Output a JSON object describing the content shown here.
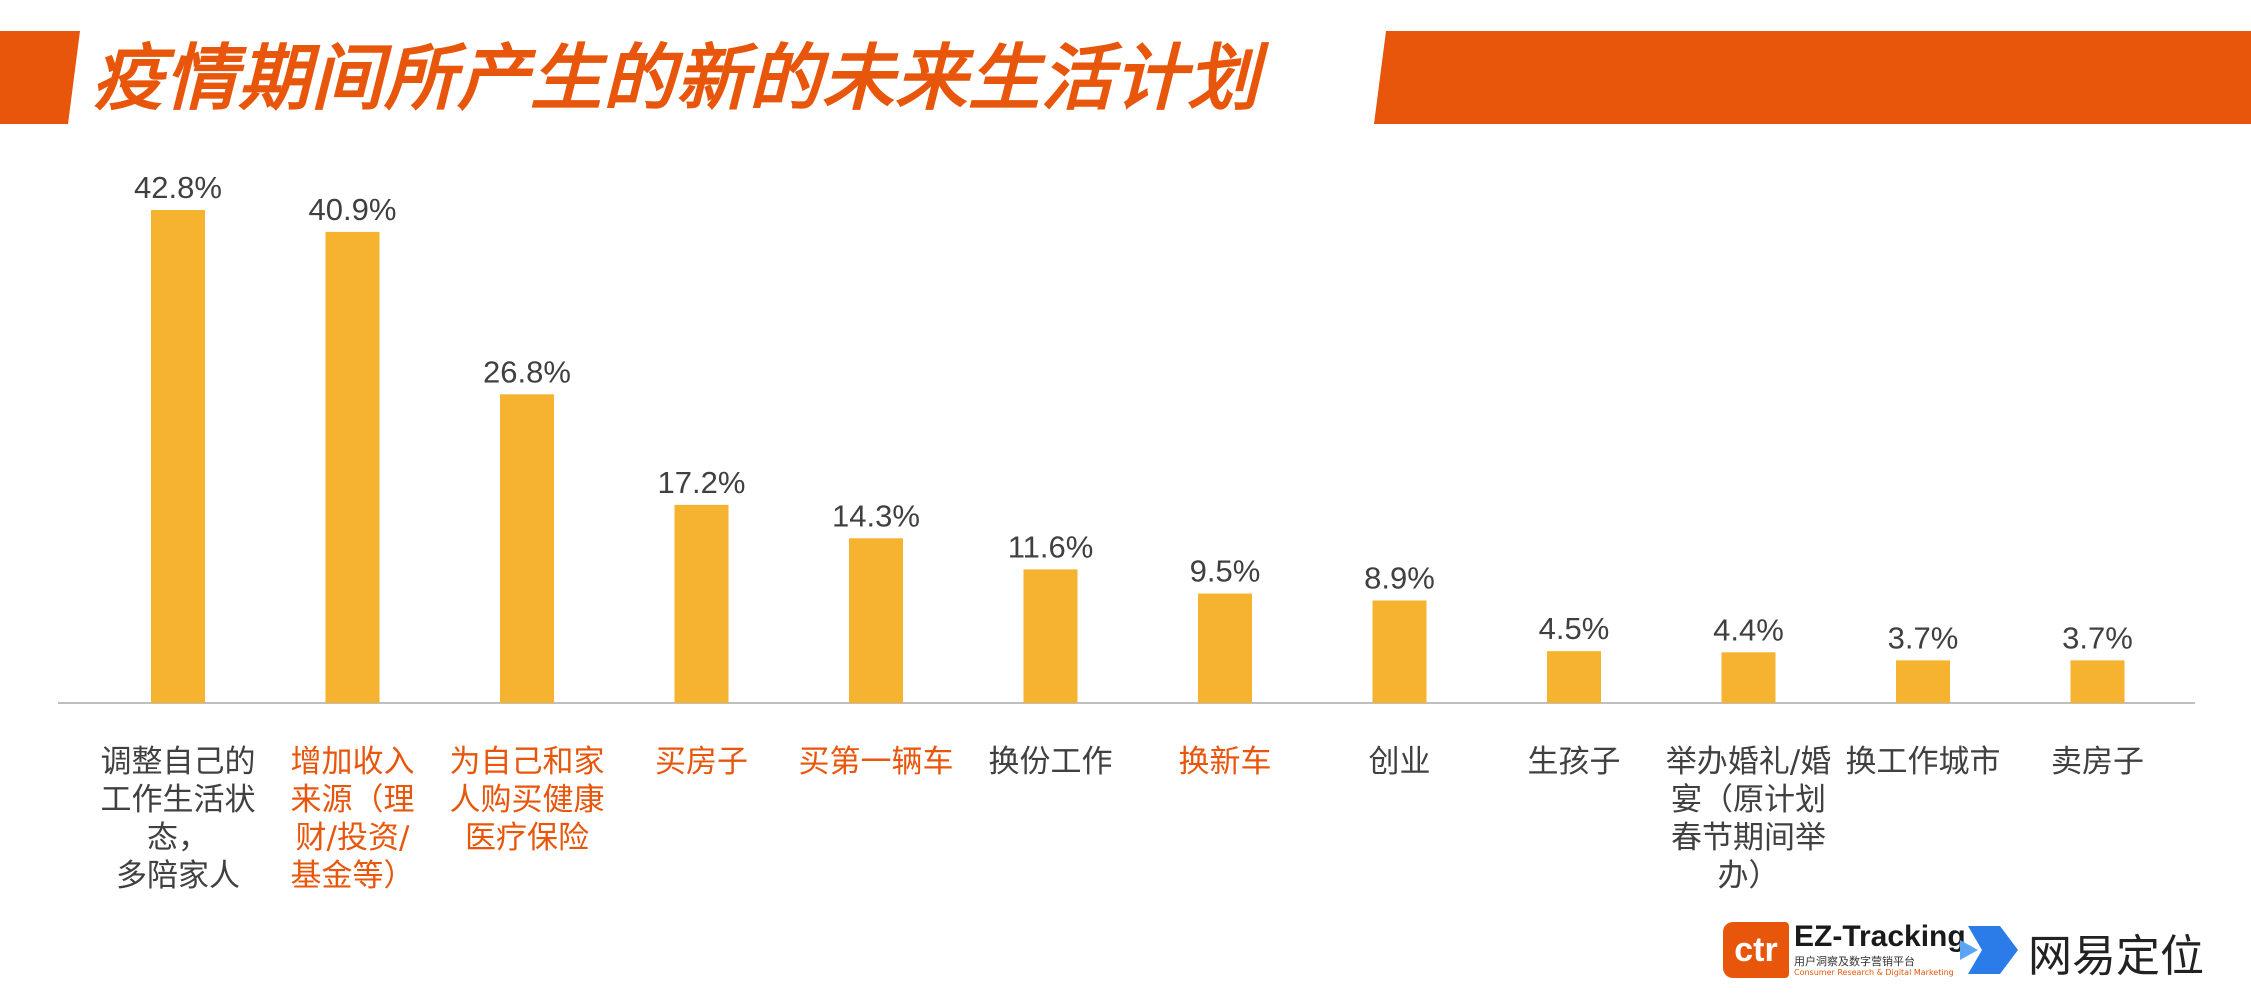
{
  "header": {
    "title": "疫情期间所产生的新的未来生活计划"
  },
  "colors": {
    "bar": "#F5B330",
    "accent": "#E8560C",
    "text": "#404040",
    "axis": "#BFBFBF"
  },
  "chart_data": {
    "type": "bar",
    "categories": [
      "调整自己的\n工作生活状态，\n多陪家人",
      "增加收入\n来源（理\n财/投资/\n基金等）",
      "为自己和家\n人购买健康\n医疗保险",
      "买房子",
      "买第一辆车",
      "换份工作",
      "换新车",
      "创业",
      "生孩子",
      "举办婚礼/婚\n宴（原计划\n春节期间举\n办）",
      "换工作城市",
      "卖房子"
    ],
    "values": [
      42.8,
      40.9,
      26.8,
      17.2,
      14.3,
      11.6,
      9.5,
      8.9,
      4.5,
      4.4,
      3.7,
      3.7
    ],
    "value_labels": [
      "42.8%",
      "40.9%",
      "26.8%",
      "17.2%",
      "14.3%",
      "11.6%",
      "9.5%",
      "8.9%",
      "4.5%",
      "4.4%",
      "3.7%",
      "3.7%"
    ],
    "highlighted": [
      false,
      true,
      true,
      true,
      true,
      false,
      true,
      false,
      false,
      false,
      false,
      false
    ],
    "ylim": [
      0,
      45
    ],
    "title": "疫情期间所产生的新的未来生活计划",
    "xlabel": "",
    "ylabel": "",
    "grid": false
  },
  "logos": {
    "ctr_mark": "ctr",
    "ez_name": "EZ-Tracking",
    "ez_sub": "用户洞察及数字营销平台",
    "ez_sub2": "Consumer Research & Digital Marketing",
    "wy_icon": "arrow-logo-icon",
    "wy_name": "网易定位"
  }
}
